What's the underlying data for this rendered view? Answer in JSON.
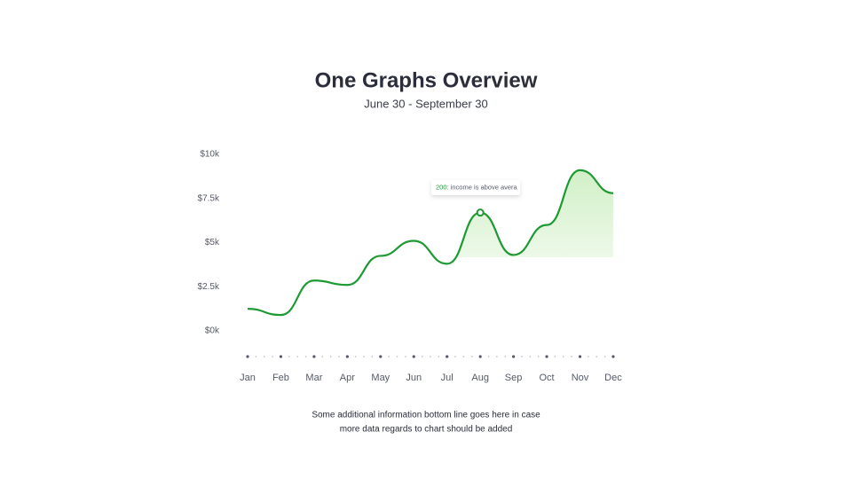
{
  "chart_data": {
    "type": "line",
    "title": "One Graphs Overview",
    "subtitle": "June 30 - September 30",
    "categories": [
      "Jan",
      "Feb",
      "Mar",
      "Apr",
      "May",
      "Jun",
      "Jul",
      "Aug",
      "Sep",
      "Oct",
      "Nov",
      "Dec"
    ],
    "series": [
      {
        "name": "Income",
        "color": "#1e9a34",
        "values": [
          1250,
          900,
          2850,
          2600,
          4250,
          5100,
          3800,
          6700,
          4300,
          6000,
          9100,
          7800
        ]
      }
    ],
    "ylim": [
      0,
      10000
    ],
    "yticks": [
      {
        "value": 0,
        "label": "$0k"
      },
      {
        "value": 2500,
        "label": "$2.5k"
      },
      {
        "value": 5000,
        "label": "$5k"
      },
      {
        "value": 7500,
        "label": "$7.5k"
      },
      {
        "value": 10000,
        "label": "$10k"
      }
    ],
    "annotation": {
      "value": "200",
      "text": ": income is above avera"
    },
    "footnote": [
      "Some additional information bottom line goes here in case",
      "more data regards to chart should be added"
    ]
  }
}
